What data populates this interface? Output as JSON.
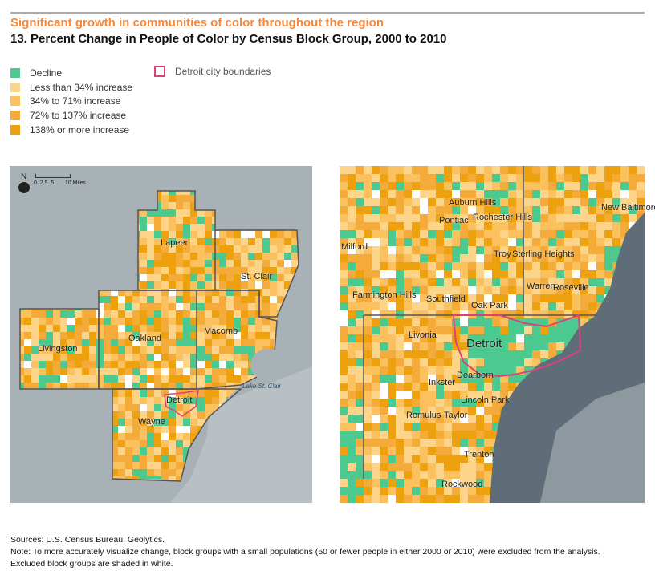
{
  "header": {
    "subtitle": "Significant growth in communities of color throughout the region",
    "title": "13. Percent Change in People of Color by Census Block Group, 2000 to 2010"
  },
  "legend": {
    "items": [
      {
        "label": "Decline",
        "color": "#4cc98e"
      },
      {
        "label": "Less than 34% increase",
        "color": "#fdd58a"
      },
      {
        "label": "34% to 71% increase",
        "color": "#fbc15e"
      },
      {
        "label": "72% to 137% increase",
        "color": "#f5ab3a"
      },
      {
        "label": "138% or more increase",
        "color": "#eea10e"
      }
    ],
    "city_boundary": {
      "label": "Detroit city boundaries",
      "color": "#e0407a"
    }
  },
  "scale_bar": {
    "north": "N",
    "ticks": "0  2.5  5       10 Miles"
  },
  "left_map": {
    "labels": [
      "Lapeer",
      "St. Clair",
      "Livingston",
      "Oakland",
      "Macomb",
      "Detroit",
      "Wayne"
    ],
    "water_label": "Lake St. Clair"
  },
  "right_map": {
    "labels": [
      "Auburn Hills",
      "Pontiac",
      "Rochester Hills",
      "New Baltimore",
      "Milford",
      "Troy",
      "Sterling Heights",
      "Farmington Hills",
      "Southfield",
      "Warren",
      "Roseville",
      "Oak Park",
      "Livonia",
      "Detroit",
      "Dearborn",
      "Inkster",
      "Lincoln Park",
      "Romulus",
      "Taylor",
      "Trenton",
      "Rockwood"
    ]
  },
  "notes": {
    "sources": "Sources: U.S. Census Bureau; Geolytics.",
    "note1": "Note: To more accurately visualize change, block groups with a small populations (50 or fewer people in either 2000 or 2010) were excluded from the analysis.",
    "note2": "Excluded block groups are shaded in white."
  }
}
